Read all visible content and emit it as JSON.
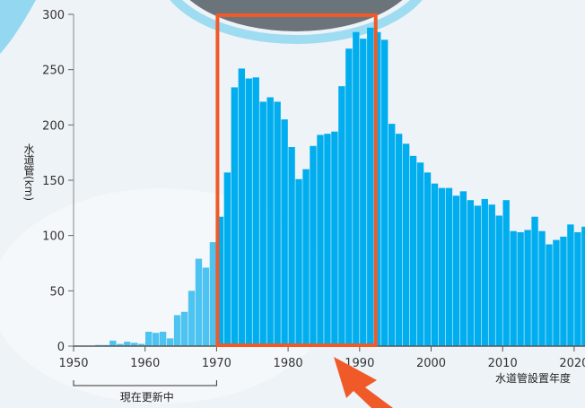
{
  "chart_data": {
    "type": "bar",
    "ylabel": "水道管(km)",
    "xlabel": "水道管設置年度",
    "ylim": [
      0,
      300
    ],
    "y_ticks": [
      "0",
      "50",
      "100",
      "150",
      "200",
      "250",
      "300"
    ],
    "x_ticks": [
      "1950",
      "1960",
      "1970",
      "1980",
      "1990",
      "2000",
      "2010",
      "2020"
    ],
    "bracket_label": "現在更新中",
    "highlight_range": [
      1970,
      1992
    ],
    "colors": {
      "pre_1970": "#4cc3f0",
      "from_1970": "#00aeef",
      "highlight_box": "#f05a28",
      "arrow": "#f05a28"
    },
    "series": [
      {
        "x": [
          1950,
          1951,
          1952,
          1953,
          1954,
          1955,
          1956,
          1957,
          1958,
          1959,
          1960,
          1961,
          1962,
          1963,
          1964,
          1965,
          1966,
          1967,
          1968,
          1969,
          1970,
          1971,
          1972,
          1973,
          1974,
          1975,
          1976,
          1977,
          1978,
          1979,
          1980,
          1981,
          1982,
          1983,
          1984,
          1985,
          1986,
          1987,
          1988,
          1989,
          1990,
          1991,
          1992,
          1993,
          1994,
          1995,
          1996,
          1997,
          1998,
          1999,
          2000,
          2001,
          2002,
          2003,
          2004,
          2005,
          2006,
          2007,
          2008,
          2009,
          2010,
          2011,
          2012,
          2013,
          2014,
          2015,
          2016,
          2017,
          2018,
          2019,
          2020,
          2021
        ],
        "values": [
          0,
          0,
          0,
          1,
          1,
          5,
          2,
          4,
          3,
          2,
          13,
          12,
          13,
          7,
          28,
          31,
          50,
          79,
          71,
          94,
          117,
          157,
          234,
          251,
          242,
          243,
          221,
          225,
          221,
          205,
          180,
          151,
          160,
          181,
          191,
          192,
          194,
          235,
          269,
          284,
          278,
          288,
          284,
          277,
          201,
          192,
          183,
          172,
          166,
          157,
          147,
          143,
          143,
          136,
          140,
          132,
          127,
          133,
          128,
          118,
          132,
          104,
          103,
          105,
          117,
          104,
          92,
          96,
          99,
          110,
          103,
          108
        ]
      }
    ]
  }
}
